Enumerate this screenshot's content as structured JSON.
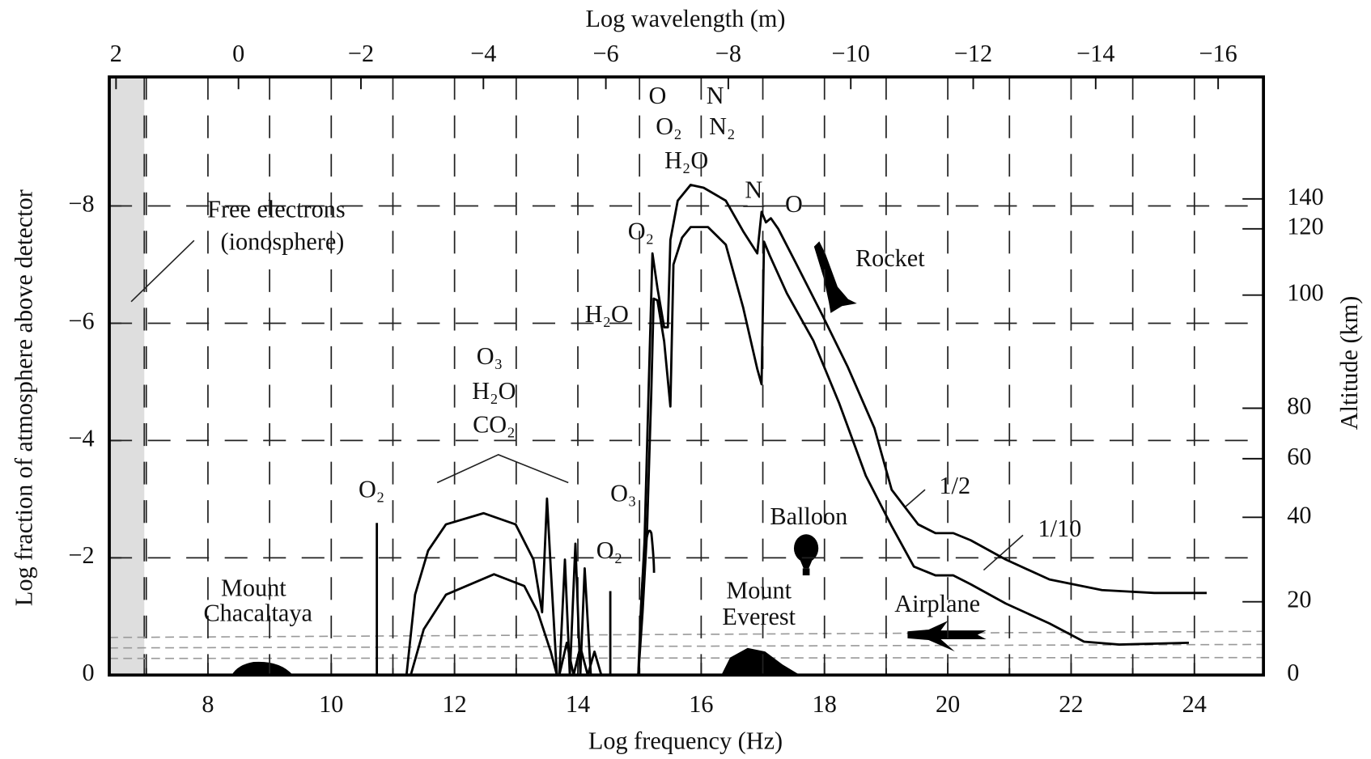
{
  "chart_data": {
    "type": "line",
    "title": null,
    "x_label": "Log frequency (Hz)",
    "x2_label": "Log wavelength (m)",
    "y_label": "Log fraction of atmosphere above detector",
    "y2_label": "Altitude (km)",
    "xlim": [
      6.4,
      25.12
    ],
    "xticks": [
      8,
      10,
      12,
      14,
      16,
      18,
      20,
      22,
      24
    ],
    "minor_xticks": [
      7,
      9,
      11,
      13,
      15,
      17,
      19,
      21,
      23
    ],
    "x2lim": [
      2.11,
      -16.74
    ],
    "x2ticks": [
      2,
      0,
      {
        "value": -2,
        "label": "−2"
      },
      {
        "value": -4,
        "label": "−4"
      },
      {
        "value": -6,
        "label": "−6"
      },
      {
        "value": -8,
        "label": "−8"
      },
      {
        "value": -10,
        "label": "−10"
      },
      {
        "value": -12,
        "label": "−12"
      },
      {
        "value": -14,
        "label": "−14"
      },
      {
        "value": -16,
        "label": "−16"
      }
    ],
    "ylim": [
      0,
      -10.2
    ],
    "yticks": [
      0,
      {
        "value": -2,
        "label": "−2"
      },
      {
        "value": -4,
        "label": "−4"
      },
      {
        "value": -6,
        "label": "−6"
      },
      {
        "value": -8,
        "label": "−8"
      }
    ],
    "y2ticks": [
      0,
      20,
      40,
      60,
      80,
      100,
      120,
      140
    ],
    "altitude_levels": [
      0,
      -1.25,
      -2.69,
      -3.69,
      -4.55,
      -6.48,
      -7.61,
      -8.12
    ],
    "grid": true,
    "series": [
      {
        "name": "1/2",
        "color": "#000000",
        "x": [
          11.22,
          11.36,
          11.57,
          11.86,
          12.47,
          12.99,
          13.28,
          13.42,
          13.5,
          13.56,
          13.66,
          13.68,
          13.7,
          13.79,
          13.87,
          13.96,
          14.04,
          14.11,
          14.21,
          14.6,
          14.98,
          15.02,
          15.08,
          15.15,
          15.21,
          15.29,
          15.4,
          15.46,
          15.5,
          15.62,
          15.83,
          16.04,
          16.4,
          16.68,
          16.91,
          16.98,
          17.05,
          17.13,
          17.25,
          17.53,
          17.96,
          18.38,
          18.81,
          19.09,
          19.52,
          19.8,
          20.09,
          20.37,
          20.94,
          21.65,
          22.5,
          23.35,
          24.2
        ],
        "values": [
          0,
          -1.37,
          -2.12,
          -2.57,
          -2.76,
          -2.57,
          -1.97,
          -1.07,
          -3.01,
          -1.82,
          0,
          null,
          0,
          -1.97,
          0,
          -2.24,
          0,
          -1.82,
          0,
          null,
          0,
          -1.07,
          -2.27,
          -4.96,
          -7.19,
          -6.6,
          -5.93,
          -5.93,
          -7.42,
          -8.09,
          -8.36,
          -8.31,
          -8.09,
          -7.57,
          -7.19,
          -7.9,
          -7.72,
          -7.79,
          -7.61,
          -7.04,
          -6.15,
          -5.25,
          -4.21,
          -3.16,
          -2.57,
          -2.42,
          -2.42,
          -2.3,
          -1.97,
          -1.63,
          -1.45,
          -1.4,
          -1.4
        ]
      },
      {
        "name": "1/10",
        "color": "#000000",
        "x": [
          11.29,
          11.5,
          11.86,
          12.64,
          13.13,
          13.35,
          13.56,
          13.66,
          13.68,
          13.7,
          13.82,
          13.93,
          14.04,
          14.16,
          14.27,
          14.38,
          14.6,
          14.98,
          15.05,
          15.12,
          15.19,
          15.23,
          15.29,
          15.4,
          15.5,
          15.55,
          15.69,
          15.83,
          16.11,
          16.4,
          16.68,
          16.91,
          16.98,
          17.02,
          17.11,
          17.39,
          17.82,
          18.24,
          18.67,
          19.09,
          19.45,
          19.8,
          20.09,
          20.37,
          20.94,
          21.65,
          22.21,
          22.78,
          23.91
        ],
        "values": [
          0,
          -0.78,
          -1.37,
          -1.72,
          -1.52,
          -1.07,
          -0.4,
          0,
          null,
          0,
          -0.55,
          0,
          -0.48,
          0,
          -0.4,
          0,
          null,
          0,
          -1.07,
          -2.42,
          -4.78,
          -6.42,
          -6.39,
          -5.69,
          -4.58,
          -7.0,
          -7.46,
          -7.64,
          -7.64,
          -7.34,
          -6.27,
          -5.22,
          -4.96,
          -7.39,
          -7.16,
          -6.51,
          -5.7,
          -4.63,
          -3.4,
          -2.54,
          -1.85,
          -1.7,
          -1.7,
          -1.55,
          -1.22,
          -0.88,
          -0.57,
          -0.52,
          -0.55
        ]
      }
    ],
    "annotations": [
      "O",
      "N",
      "O₂",
      "N₂",
      "H₂O",
      "N",
      "O",
      "O₂",
      "H₂O",
      "O₃",
      "H₂O",
      "CO₂",
      "O₂",
      "O₃",
      "O₂",
      "Free electrons",
      "(ionosphere)",
      "Rocket",
      "Balloon",
      "Mount",
      "Everest",
      "Mount",
      "Chacaltaya",
      "Airplane"
    ]
  }
}
